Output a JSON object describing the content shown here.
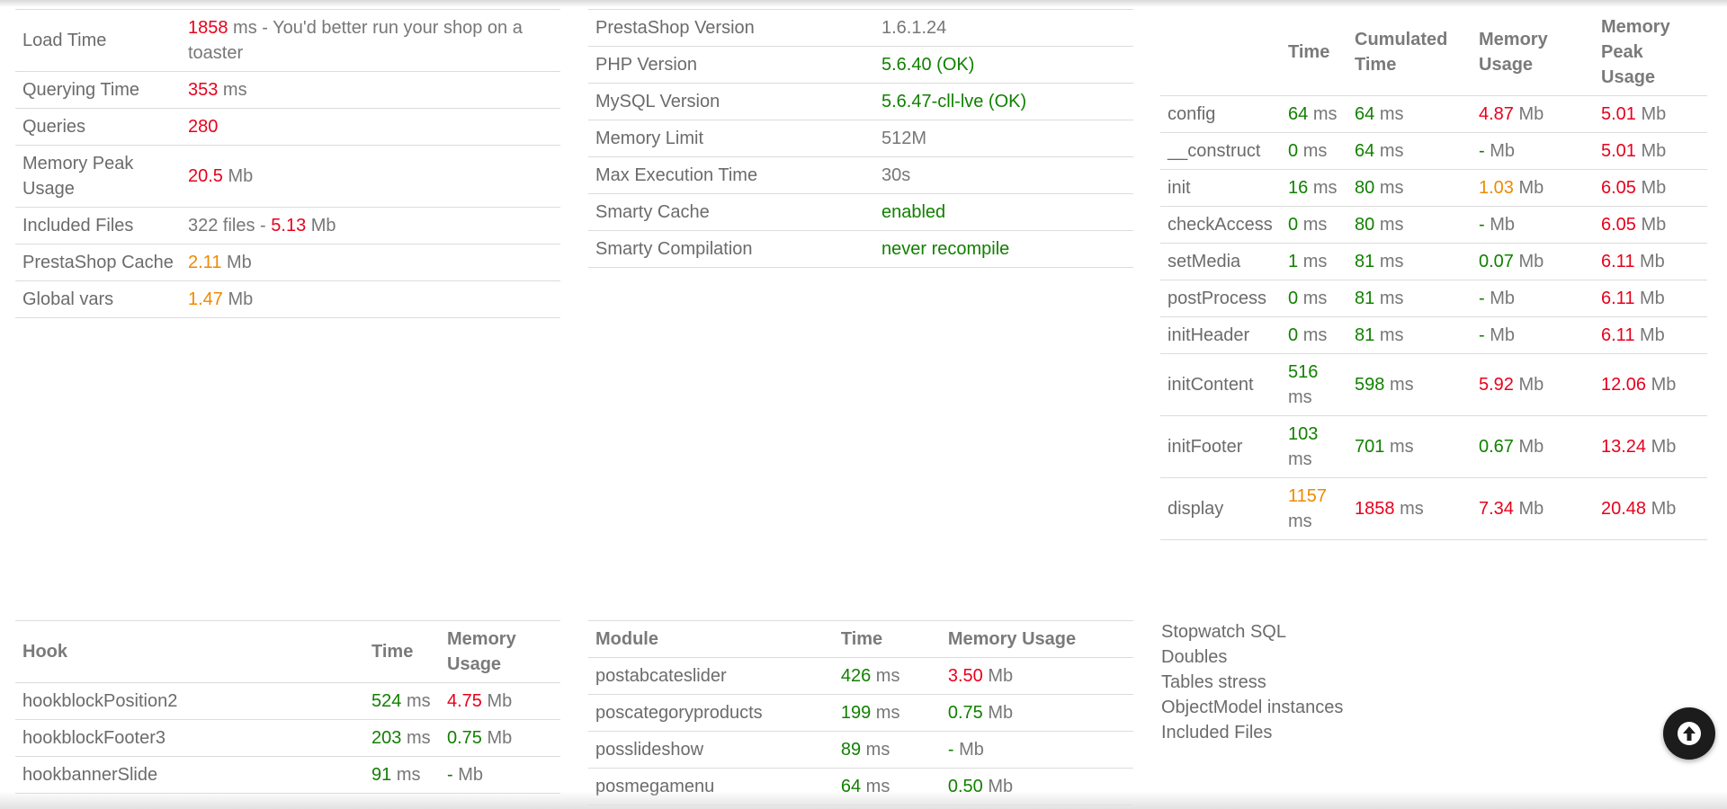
{
  "summary": {
    "rows": [
      {
        "label": "Load Time",
        "value": "1858",
        "value_color": "red",
        "suffix": " ms - You'd better run your shop on a toaster"
      },
      {
        "label": "Querying Time",
        "value": "353",
        "value_color": "red",
        "suffix": " ms"
      },
      {
        "label": "Queries",
        "value": "280",
        "value_color": "red",
        "suffix": ""
      },
      {
        "label": "Memory Peak Usage",
        "value": "20.5",
        "value_color": "red",
        "suffix": " Mb"
      },
      {
        "label": "Included Files",
        "prefix": "322 files - ",
        "value": "5.13",
        "value_color": "red",
        "suffix": " Mb"
      },
      {
        "label": "PrestaShop Cache",
        "value": "2.11",
        "value_color": "orange",
        "suffix": " Mb"
      },
      {
        "label": "Global vars",
        "value": "1.47",
        "value_color": "orange",
        "suffix": " Mb"
      }
    ]
  },
  "config": {
    "rows": [
      {
        "label": "PrestaShop Version",
        "value": "1.6.1.24",
        "color": "gray"
      },
      {
        "label": "PHP Version",
        "value": "5.6.40 (OK)",
        "color": "green"
      },
      {
        "label": "MySQL Version",
        "value": "5.6.47-cll-lve (OK)",
        "color": "green"
      },
      {
        "label": "Memory Limit",
        "value": "512M",
        "color": "gray"
      },
      {
        "label": "Max Execution Time",
        "value": "30s",
        "color": "gray"
      },
      {
        "label": "Smarty Cache",
        "value": "enabled",
        "color": "green"
      },
      {
        "label": "Smarty Compilation",
        "value": "never recompile",
        "color": "green"
      }
    ]
  },
  "steps": {
    "headers": [
      "",
      "Time",
      "Cumulated Time",
      "Memory Usage",
      "Memory Peak Usage"
    ],
    "rows": [
      {
        "name": "config",
        "time": "64",
        "time_c": "green",
        "cum": "64",
        "cum_c": "green",
        "mem": "4.87",
        "mem_c": "red",
        "peak": "5.01",
        "peak_c": "red"
      },
      {
        "name": "__construct",
        "time": "0",
        "time_c": "green",
        "cum": "64",
        "cum_c": "green",
        "mem": "-",
        "mem_c": "green",
        "peak": "5.01",
        "peak_c": "red"
      },
      {
        "name": "init",
        "time": "16",
        "time_c": "green",
        "cum": "80",
        "cum_c": "green",
        "mem": "1.03",
        "mem_c": "orange",
        "peak": "6.05",
        "peak_c": "red"
      },
      {
        "name": "checkAccess",
        "time": "0",
        "time_c": "green",
        "cum": "80",
        "cum_c": "green",
        "mem": "-",
        "mem_c": "green",
        "peak": "6.05",
        "peak_c": "red"
      },
      {
        "name": "setMedia",
        "time": "1",
        "time_c": "green",
        "cum": "81",
        "cum_c": "green",
        "mem": "0.07",
        "mem_c": "green",
        "peak": "6.11",
        "peak_c": "red"
      },
      {
        "name": "postProcess",
        "time": "0",
        "time_c": "green",
        "cum": "81",
        "cum_c": "green",
        "mem": "-",
        "mem_c": "green",
        "peak": "6.11",
        "peak_c": "red"
      },
      {
        "name": "initHeader",
        "time": "0",
        "time_c": "green",
        "cum": "81",
        "cum_c": "green",
        "mem": "-",
        "mem_c": "green",
        "peak": "6.11",
        "peak_c": "red"
      },
      {
        "name": "initContent",
        "time": "516",
        "time_c": "green",
        "cum": "598",
        "cum_c": "green",
        "mem": "5.92",
        "mem_c": "red",
        "peak": "12.06",
        "peak_c": "red"
      },
      {
        "name": "initFooter",
        "time": "103",
        "time_c": "green",
        "cum": "701",
        "cum_c": "green",
        "mem": "0.67",
        "mem_c": "green",
        "peak": "13.24",
        "peak_c": "red"
      },
      {
        "name": "display",
        "time": "1157",
        "time_c": "orange",
        "cum": "1858",
        "cum_c": "red",
        "mem": "7.34",
        "mem_c": "red",
        "peak": "20.48",
        "peak_c": "red"
      }
    ],
    "ms": "ms",
    "mb": "Mb"
  },
  "hooks": {
    "headers": [
      "Hook",
      "Time",
      "Memory Usage"
    ],
    "rows": [
      {
        "name": "hookblockPosition2",
        "time": "524",
        "time_c": "green",
        "mem": "4.75",
        "mem_c": "red"
      },
      {
        "name": "hookblockFooter3",
        "time": "203",
        "time_c": "green",
        "mem": "0.75",
        "mem_c": "green"
      },
      {
        "name": "hookbannerSlide",
        "time": "91",
        "time_c": "green",
        "mem": "-",
        "mem_c": "green"
      }
    ]
  },
  "modules": {
    "headers": [
      "Module",
      "Time",
      "Memory Usage"
    ],
    "rows": [
      {
        "name": "postabcateslider",
        "time": "426",
        "time_c": "green",
        "mem": "3.50",
        "mem_c": "red"
      },
      {
        "name": "poscategoryproducts",
        "time": "199",
        "time_c": "green",
        "mem": "0.75",
        "mem_c": "green"
      },
      {
        "name": "posslideshow",
        "time": "89",
        "time_c": "green",
        "mem": "-",
        "mem_c": "green"
      },
      {
        "name": "posmegamenu",
        "time": "64",
        "time_c": "green",
        "mem": "0.50",
        "mem_c": "green"
      }
    ]
  },
  "links": [
    "Stopwatch SQL",
    "Doubles",
    "Tables stress",
    "ObjectModel instances",
    "Included Files"
  ],
  "fab": {
    "icon": "arrow-up-icon"
  }
}
